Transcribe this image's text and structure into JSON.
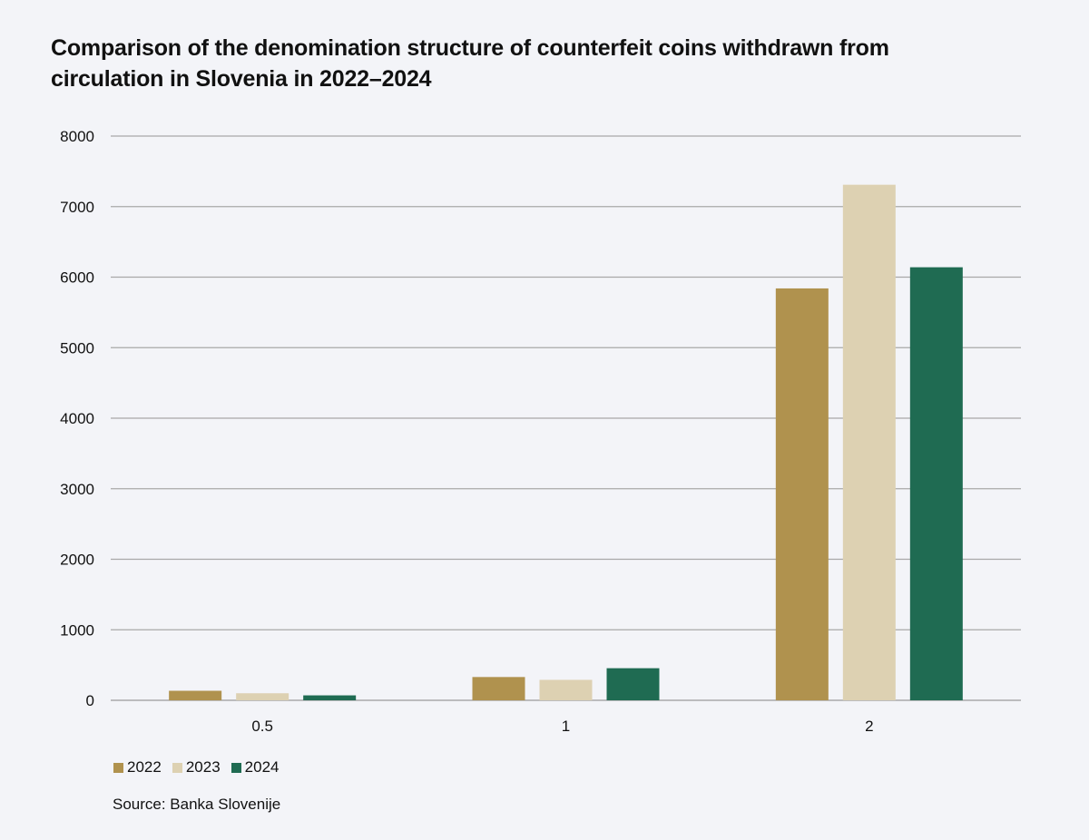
{
  "title": "Comparison of the denomination structure of counterfeit coins withdrawn from circulation in Slovenia in 2022–2024",
  "source": "Source: Banka Slovenije",
  "colors": {
    "grid": "#a8a8a8",
    "axis": "#9a9a9a",
    "background": "#f3f4f8"
  },
  "chart_data": {
    "type": "bar",
    "title": "Comparison of the denomination structure of counterfeit coins withdrawn from circulation in Slovenia in 2022–2024",
    "xlabel": "",
    "ylabel": "",
    "categories": [
      "0.5",
      "1",
      "2"
    ],
    "ylim": [
      0,
      8000
    ],
    "yticks": [
      0,
      1000,
      2000,
      3000,
      4000,
      5000,
      6000,
      7000,
      8000
    ],
    "grid": true,
    "legend_position": "bottom-left",
    "series": [
      {
        "name": "2022",
        "color": "#b0924e",
        "values": [
          135,
          330,
          5840
        ]
      },
      {
        "name": "2023",
        "color": "#ddd1b2",
        "values": [
          100,
          290,
          7310
        ]
      },
      {
        "name": "2024",
        "color": "#1f6b52",
        "values": [
          70,
          455,
          6140
        ]
      }
    ]
  }
}
